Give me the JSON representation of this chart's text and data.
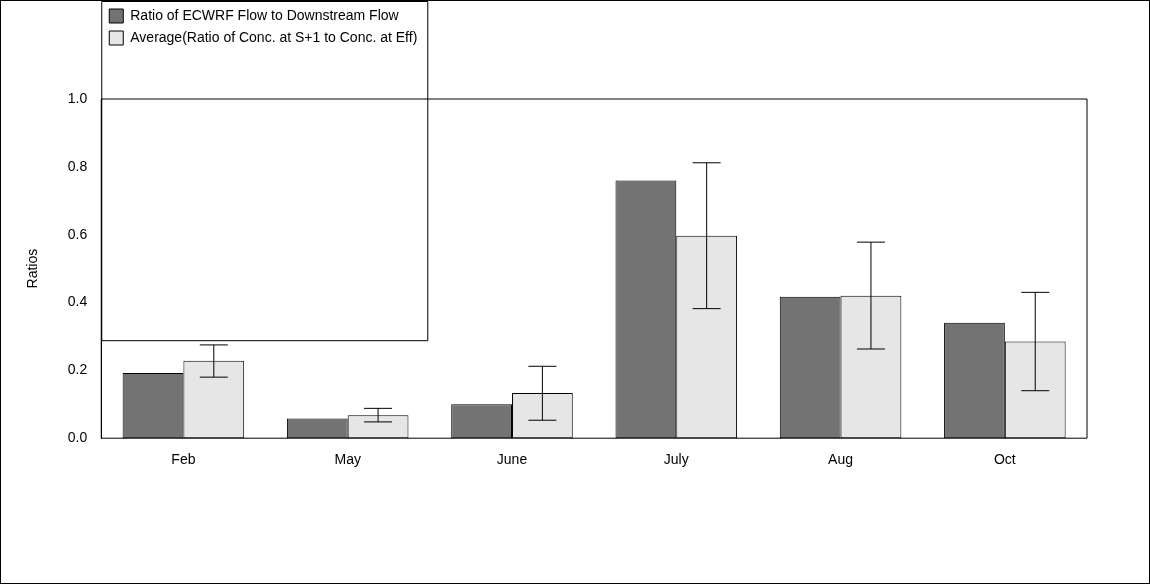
{
  "chart_data": {
    "type": "bar",
    "ylabel": "Ratios",
    "categories": [
      "Feb",
      "May",
      "June",
      "July",
      "Aug",
      "Oct"
    ],
    "series": [
      {
        "name": "Ratio of ECWRF Flow to Downstream Flow",
        "color": "#737373",
        "values": [
          0.192,
          0.058,
          0.1,
          0.76,
          0.417,
          0.34
        ]
      },
      {
        "name": "Average(Ratio of Conc. at S+1 to Conc. at Eff)",
        "color": "#e6e6e6",
        "values": [
          0.228,
          0.068,
          0.133,
          0.597,
          0.42,
          0.285
        ],
        "errors": [
          [
            0.18,
            0.275
          ],
          [
            0.048,
            0.088
          ],
          [
            0.053,
            0.212
          ],
          [
            0.382,
            0.812
          ],
          [
            0.263,
            0.578
          ],
          [
            0.14,
            0.43
          ]
        ]
      }
    ],
    "ylim": [
      0,
      1
    ],
    "yticks": [
      {
        "value": 0,
        "label": "0.0"
      },
      {
        "value": 0.2,
        "label": "0.2"
      },
      {
        "value": 0.4,
        "label": "0.4"
      },
      {
        "value": 0.6,
        "label": "0.6"
      },
      {
        "value": 0.8,
        "label": "0.8"
      },
      {
        "value": 1,
        "label": "1.0"
      }
    ],
    "grid": false,
    "legend": "top left"
  }
}
